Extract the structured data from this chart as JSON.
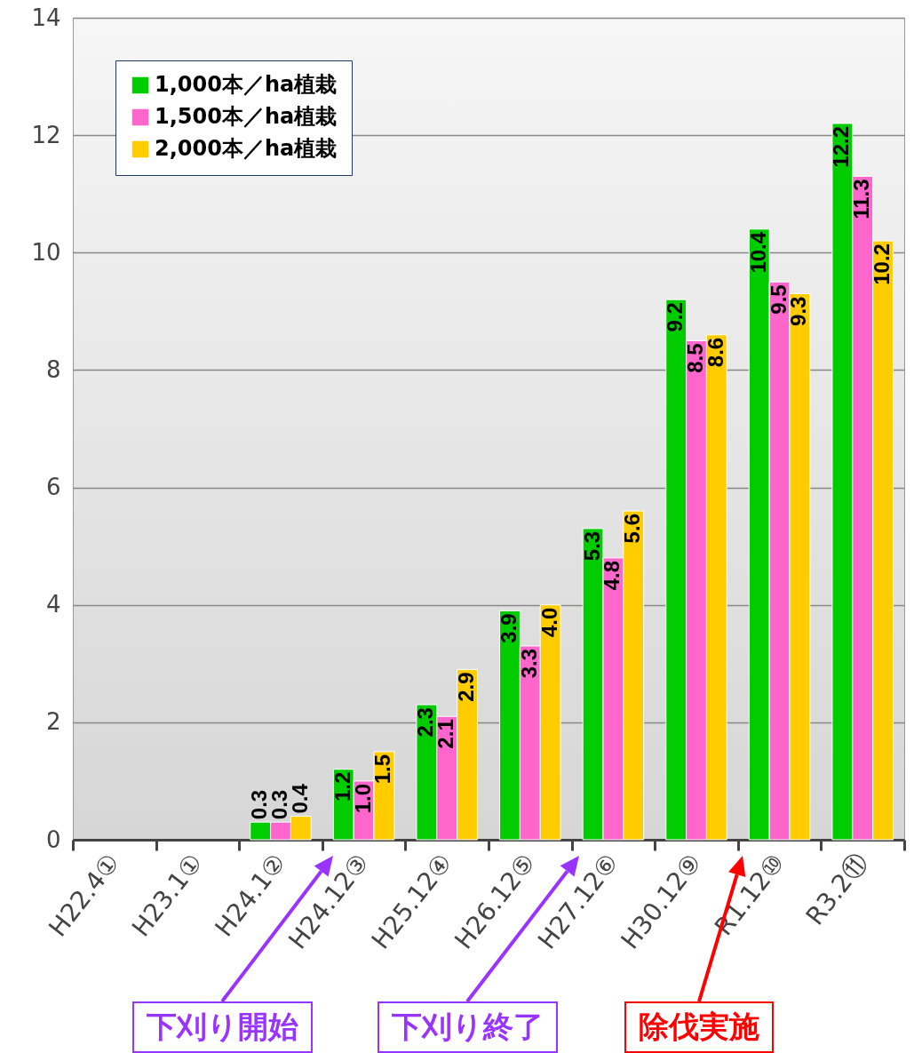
{
  "chart_data": {
    "type": "bar",
    "categories": [
      "H22.4①",
      "H23.1①",
      "H24.1②",
      "H24.12③",
      "H25.12④",
      "H26.12⑤",
      "H27.12⑥",
      "H30.12⑨",
      "R1.12⑩",
      "R3.2⑪"
    ],
    "series": [
      {
        "name": "1,000本／ha植栽",
        "color": "#00cc00",
        "values": [
          null,
          null,
          0.3,
          1.2,
          2.3,
          3.9,
          5.3,
          9.2,
          10.4,
          12.2
        ],
        "value_labels": [
          null,
          null,
          "0.3",
          "1.2",
          "2.3",
          "3.9",
          "5.3",
          "9.2",
          "10.4",
          "12.2"
        ]
      },
      {
        "name": "1,500本／ha植栽",
        "color": "#ff66cc",
        "values": [
          null,
          null,
          0.3,
          1.0,
          2.1,
          3.3,
          4.8,
          8.5,
          9.5,
          11.3
        ],
        "value_labels": [
          null,
          null,
          "0.3",
          "1.0",
          "2.1",
          "3.3",
          "4.8",
          "8.5",
          "9.5",
          "11.3"
        ]
      },
      {
        "name": "2,000本／ha植栽",
        "color": "#ffcc00",
        "values": [
          null,
          null,
          0.4,
          1.5,
          2.9,
          4.0,
          5.6,
          8.6,
          9.3,
          10.2
        ],
        "value_labels": [
          null,
          null,
          "0.4",
          "1.5",
          "2.9",
          "4.0",
          "5.6",
          "8.6",
          "9.3",
          "10.2"
        ]
      }
    ],
    "ylim": [
      0,
      14
    ],
    "yticks": [
      0,
      2,
      4,
      6,
      8,
      10,
      12,
      14
    ],
    "grid": "y",
    "legend": "top left",
    "annotations": [
      "下刈り開始",
      "下刈り終了",
      "除伐実施"
    ]
  }
}
